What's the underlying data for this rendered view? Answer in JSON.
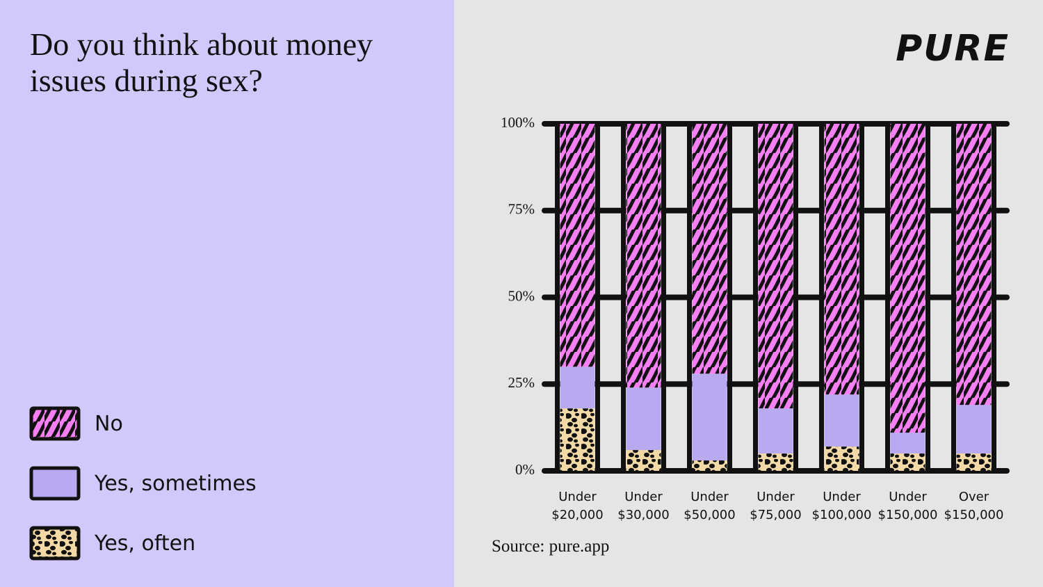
{
  "chart_data": {
    "type": "stacked_bar",
    "title": "Do you think about money issues during sex?",
    "logo": "PURE",
    "source": "Source: pure.app",
    "categories": [
      "Under $20,000",
      "Under $30,000",
      "Under $50,000",
      "Under $75,000",
      "Under $100,000",
      "Under $150,000",
      "Over $150,000"
    ],
    "series": [
      {
        "name": "Yes, often",
        "color": "#f3d9a6",
        "values": [
          18,
          6,
          3,
          5,
          7,
          5,
          5
        ]
      },
      {
        "name": "Yes, sometimes",
        "color": "#b9a9f1",
        "values": [
          12,
          18,
          25,
          13,
          15,
          6,
          14
        ]
      },
      {
        "name": "No",
        "color": "#f57ff3",
        "values": [
          70,
          76,
          72,
          82,
          78,
          89,
          81
        ]
      }
    ],
    "ylim": [
      0,
      100
    ],
    "yticks": [
      {
        "value": 0,
        "label": "0%"
      },
      {
        "value": 25,
        "label": "25%"
      },
      {
        "value": 50,
        "label": "50%"
      },
      {
        "value": 75,
        "label": "75%"
      },
      {
        "value": 100,
        "label": "100%"
      }
    ],
    "grid": true
  }
}
